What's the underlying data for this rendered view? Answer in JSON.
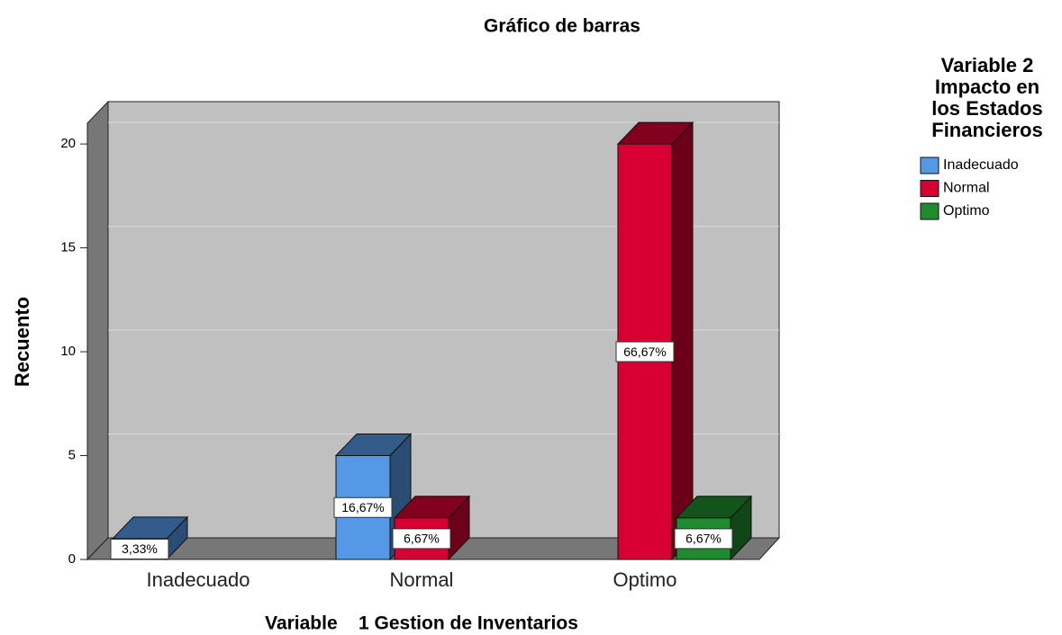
{
  "chart_data": {
    "type": "bar3d",
    "title": "Gráfico de barras",
    "x_label": "Variable    1 Gestion de Inventarios",
    "y_label": "Recuento",
    "legend_title": [
      "Variable 2",
      "Impacto en",
      "los Estados",
      "Financieros"
    ],
    "categories": [
      "Inadecuado",
      "Normal",
      "Optimo"
    ],
    "series": [
      {
        "name": "Inadecuado",
        "color": "#5599e6",
        "values": [
          1,
          5,
          null
        ],
        "percent_labels": [
          "3,33%",
          "16,67%",
          null
        ]
      },
      {
        "name": "Normal",
        "color": "#d80032",
        "values": [
          null,
          2,
          20
        ],
        "percent_labels": [
          null,
          "6,67%",
          "66,67%"
        ]
      },
      {
        "name": "Optimo",
        "color": "#1f8a2e",
        "values": [
          null,
          null,
          2
        ],
        "percent_labels": [
          null,
          null,
          "6,67%"
        ]
      }
    ],
    "ylim": [
      0,
      21
    ],
    "yticks": [
      0,
      5,
      10,
      15,
      20
    ],
    "grid": true
  }
}
